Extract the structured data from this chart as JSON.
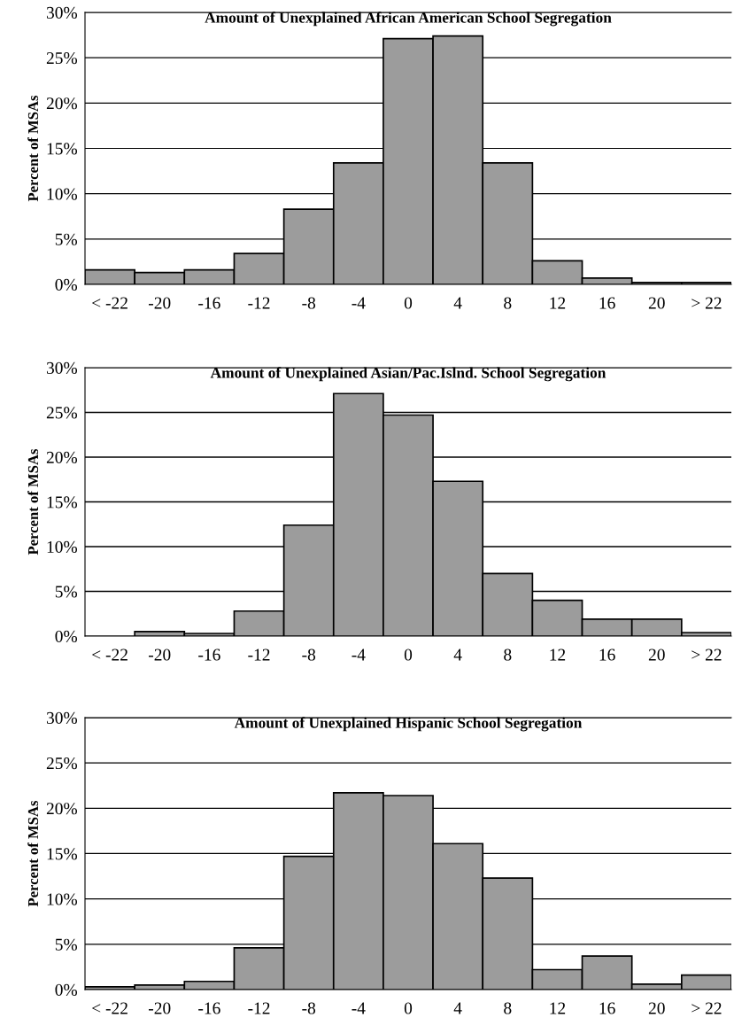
{
  "chart_data": [
    {
      "type": "bar",
      "title": "Amount of Unexplained African American School Segregation",
      "ylabel": "Percent of MSAs",
      "categories": [
        "< -22",
        "-20",
        "-16",
        "-12",
        "-8",
        "-4",
        "0",
        "4",
        "8",
        "12",
        "16",
        "20",
        "> 22"
      ],
      "color": "#9c9c9c",
      "values": [
        1.6,
        1.3,
        1.6,
        3.4,
        8.3,
        13.4,
        27.1,
        27.4,
        13.4,
        2.6,
        0.7,
        0.2,
        0.2
      ],
      "ylim": [
        0,
        30
      ],
      "yticks": [
        {
          "value": 0,
          "label": "0%"
        },
        {
          "value": 5,
          "label": "5%"
        },
        {
          "value": 10,
          "label": "10%"
        },
        {
          "value": 15,
          "label": "15%"
        },
        {
          "value": 20,
          "label": "20%"
        },
        {
          "value": 25,
          "label": "25%"
        },
        {
          "value": 30,
          "label": "30%"
        }
      ],
      "grid": "y"
    },
    {
      "type": "bar",
      "title": "Amount of Unexplained Asian/Pac.Islnd. School Segregation",
      "ylabel": "Percent of MSAs",
      "categories": [
        "< -22",
        "-20",
        "-16",
        "-12",
        "-8",
        "-4",
        "0",
        "4",
        "8",
        "12",
        "16",
        "20",
        "> 22"
      ],
      "color": "#9c9c9c",
      "values": [
        0,
        0.5,
        0.3,
        2.8,
        12.4,
        27.1,
        24.7,
        17.3,
        7.0,
        4.0,
        1.9,
        1.9,
        0.4
      ],
      "ylim": [
        0,
        30
      ],
      "yticks": [
        {
          "value": 0,
          "label": "0%"
        },
        {
          "value": 5,
          "label": "5%"
        },
        {
          "value": 10,
          "label": "10%"
        },
        {
          "value": 15,
          "label": "15%"
        },
        {
          "value": 20,
          "label": "20%"
        },
        {
          "value": 25,
          "label": "25%"
        },
        {
          "value": 30,
          "label": "30%"
        }
      ],
      "grid": "y"
    },
    {
      "type": "bar",
      "title": "Amount of Unexplained Hispanic School Segregation",
      "ylabel": "Percent of MSAs",
      "categories": [
        "< -22",
        "-20",
        "-16",
        "-12",
        "-8",
        "-4",
        "0",
        "4",
        "8",
        "12",
        "16",
        "20",
        "> 22"
      ],
      "color": "#9c9c9c",
      "values": [
        0.3,
        0.5,
        0.9,
        4.6,
        14.7,
        21.7,
        21.4,
        16.1,
        12.3,
        2.2,
        3.7,
        0.6,
        1.6
      ],
      "ylim": [
        0,
        30
      ],
      "yticks": [
        {
          "value": 0,
          "label": "0%"
        },
        {
          "value": 5,
          "label": "5%"
        },
        {
          "value": 10,
          "label": "10%"
        },
        {
          "value": 15,
          "label": "15%"
        },
        {
          "value": 20,
          "label": "20%"
        },
        {
          "value": 25,
          "label": "25%"
        },
        {
          "value": 30,
          "label": "30%"
        }
      ],
      "grid": "y"
    }
  ]
}
